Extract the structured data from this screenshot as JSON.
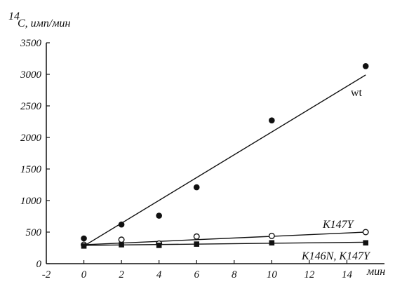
{
  "chart_data": {
    "type": "scatter",
    "ylabel_prefix": "14",
    "ylabel": "C, имп/мин",
    "xlabel": "мин",
    "xlim": [
      -2,
      16
    ],
    "ylim": [
      0,
      3500
    ],
    "x_ticks": [
      -2,
      0,
      2,
      4,
      6,
      8,
      10,
      12,
      14
    ],
    "y_ticks": [
      0,
      500,
      1000,
      1500,
      2000,
      2500,
      3000,
      3500
    ],
    "grid": false,
    "series": [
      {
        "name": "wt",
        "marker": "filled-circle",
        "points": [
          [
            0,
            400
          ],
          [
            2,
            620
          ],
          [
            4,
            760
          ],
          [
            6,
            1210
          ],
          [
            10,
            2270
          ],
          [
            15,
            3130
          ]
        ],
        "fit": [
          [
            0,
            280
          ],
          [
            15,
            2990
          ]
        ]
      },
      {
        "name": "K147Y",
        "marker": "open-circle",
        "points": [
          [
            0,
            300
          ],
          [
            2,
            380
          ],
          [
            4,
            320
          ],
          [
            6,
            430
          ],
          [
            10,
            440
          ],
          [
            15,
            500
          ]
        ],
        "fit": [
          [
            0,
            300
          ],
          [
            15,
            500
          ]
        ]
      },
      {
        "name": "K146N, K147Y",
        "marker": "filled-square",
        "points": [
          [
            0,
            280
          ],
          [
            2,
            300
          ],
          [
            4,
            290
          ],
          [
            6,
            310
          ],
          [
            10,
            330
          ],
          [
            15,
            330
          ]
        ],
        "fit": [
          [
            0,
            290
          ],
          [
            15,
            340
          ]
        ]
      }
    ]
  }
}
